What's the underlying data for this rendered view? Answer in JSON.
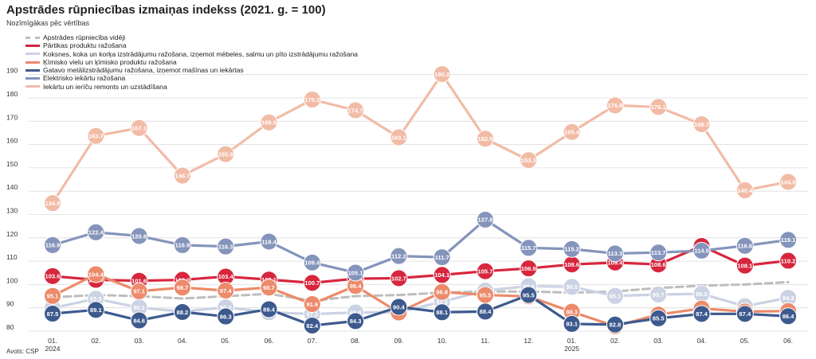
{
  "title": "Apstrādes rūpniecības izmaiņas indekss (2021. g. = 100)",
  "subtitle": "Nozīmīgākas pēc vērtības",
  "source": "Avots: CSP",
  "chart_data": {
    "type": "line",
    "categories": [
      "01.",
      "02.",
      "03.",
      "04.",
      "05.",
      "06.",
      "07.",
      "08.",
      "09.",
      "10.",
      "11.",
      "12.",
      "01.",
      "02.",
      "03.",
      "04.",
      "05.",
      "06."
    ],
    "year_labels": [
      "2024",
      "",
      "",
      "",
      "",
      "",
      "",
      "",
      "",
      "",
      "",
      "",
      "2025",
      "",
      "",
      "",
      "",
      ""
    ],
    "ylim": [
      80,
      193
    ],
    "yticks": [
      80,
      90,
      100,
      110,
      120,
      130,
      140,
      150,
      160,
      170,
      180,
      190
    ],
    "grid": true,
    "legend_position": "top-left",
    "series": [
      {
        "name": "Apstrādes rūpniecība vidēji",
        "color": "#bdbdbd",
        "dashed": true,
        "labels": false,
        "values": [
          94.5,
          95.5,
          95.0,
          94.0,
          95.0,
          96.0,
          93.0,
          95.0,
          95.5,
          96.5,
          97.0,
          97.0,
          96.5,
          97.0,
          98.5,
          99.5,
          100.0,
          101.0
        ]
      },
      {
        "name": "Pārtikas produktu ražošana",
        "color": "#d7263d",
        "values": [
          103.6,
          102.0,
          101.6,
          102.0,
          103.4,
          102.1,
          100.7,
          102.5,
          102.7,
          104.1,
          105.7,
          106.9,
          108.6,
          109.4,
          108.6,
          116.5,
          108.1,
          110.2
        ]
      },
      {
        "name": "Koksnes, koka un korķa izstrādājumu ražošana, izņemot mēbeles, salmu un pīto izstrādājumu ražošana",
        "color": "#cbd2e3",
        "values": [
          89.9,
          93.9,
          90.1,
          88.4,
          90.2,
          88.1,
          87.3,
          88.0,
          88.1,
          92.6,
          97.4,
          99.3,
          99.0,
          95.1,
          95.7,
          96.0,
          90.7,
          94.3
        ]
      },
      {
        "name": "Ķīmisko vielu un ķīmisko produktu ražošana",
        "color": "#ec8a6a",
        "values": [
          95.1,
          104.4,
          97.1,
          98.7,
          97.4,
          98.7,
          91.6,
          99.4,
          88.0,
          96.8,
          95.5,
          94.9,
          88.3,
          82.1,
          87.1,
          89.7,
          88.4,
          88.6
        ]
      },
      {
        "name": "Gatavo metālizstrādājumu ražošana, izņemot mašīnas un iekārtas",
        "color": "#3d5a8e",
        "values": [
          87.5,
          89.1,
          84.6,
          88.2,
          86.3,
          89.4,
          82.4,
          84.3,
          90.4,
          88.1,
          88.4,
          95.5,
          83.1,
          82.8,
          85.5,
          87.4,
          87.4,
          86.4
        ]
      },
      {
        "name": "Elektrisko iekārtu ražošana",
        "color": "#8494bb",
        "values": [
          116.9,
          122.4,
          120.8,
          116.9,
          116.3,
          118.4,
          109.4,
          105.1,
          112.2,
          111.7,
          127.8,
          115.7,
          115.2,
          113.3,
          113.7,
          114.5,
          116.6,
          119.1
        ]
      },
      {
        "name": "Iekārtu un ierīču remonts un uzstādīšana",
        "color": "#f2bba6",
        "values": [
          134.9,
          163.7,
          167.1,
          146.7,
          155.9,
          169.5,
          179.3,
          174.7,
          163.1,
          190.2,
          162.5,
          153.3,
          165.4,
          176.8,
          176.1,
          168.7,
          140.4,
          144.0
        ]
      }
    ]
  }
}
